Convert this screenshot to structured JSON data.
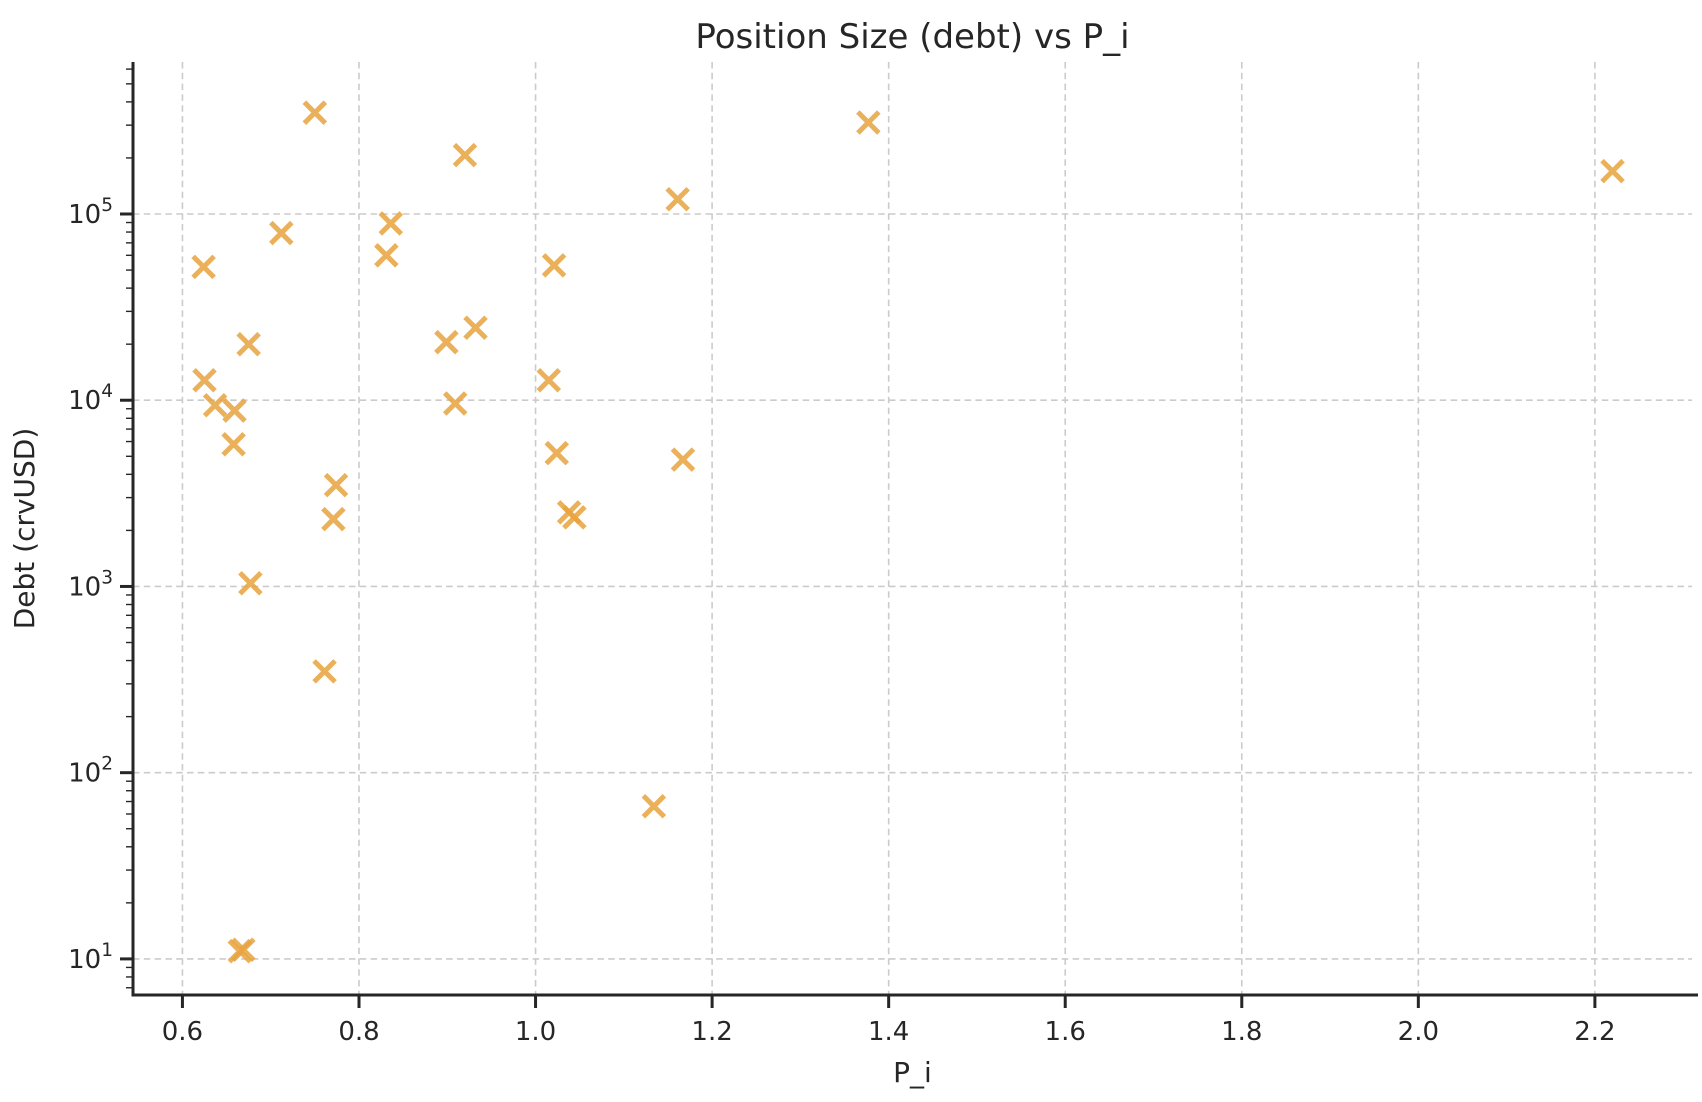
{
  "title": "Position Size (debt) vs P_i",
  "chart_data": {
    "type": "scatter",
    "title": "Position Size (debt) vs P_i",
    "xlabel": "P_i",
    "ylabel": "Debt (crvUSD)",
    "x_ticks": [
      0.6,
      0.8,
      1.0,
      1.2,
      1.4,
      1.6,
      1.8,
      2.0,
      2.2
    ],
    "x_tick_labels": [
      "0.6",
      "0.8",
      "1.0",
      "1.2",
      "1.4",
      "1.6",
      "1.8",
      "2.0",
      "2.2"
    ],
    "y_ticks": [
      10,
      100,
      1000,
      10000,
      100000
    ],
    "y_tick_exponents": [
      1,
      2,
      3,
      4,
      5
    ],
    "xlim": [
      0.544,
      2.31
    ],
    "ylim": [
      6.4,
      655000
    ],
    "y_scale": "log",
    "grid": true,
    "legend": "none",
    "marker": "x",
    "points": [
      [
        0.75,
        350000
      ],
      [
        0.92,
        207000
      ],
      [
        0.712,
        79000
      ],
      [
        0.624,
        52000
      ],
      [
        0.836,
        89000
      ],
      [
        0.831,
        60000
      ],
      [
        0.675,
        20000
      ],
      [
        0.625,
        12800
      ],
      [
        0.637,
        9400
      ],
      [
        0.659,
        8800
      ],
      [
        0.658,
        5800
      ],
      [
        0.899,
        20500
      ],
      [
        0.932,
        24500
      ],
      [
        0.909,
        9600
      ],
      [
        0.774,
        3500
      ],
      [
        0.771,
        2300
      ],
      [
        0.677,
        1040
      ],
      [
        0.761,
        350
      ],
      [
        1.161,
        120000
      ],
      [
        1.021,
        53000
      ],
      [
        1.015,
        12800
      ],
      [
        1.024,
        5200
      ],
      [
        1.167,
        4800
      ],
      [
        1.038,
        2500
      ],
      [
        1.044,
        2350
      ],
      [
        1.134,
        66
      ],
      [
        0.665,
        11
      ],
      [
        0.669,
        11.2
      ],
      [
        1.377,
        310000
      ],
      [
        2.22,
        170000
      ]
    ]
  },
  "colors": {
    "marker": "#e8a33d",
    "grid": "#cbcbcb",
    "axis": "#262626",
    "text": "#262626",
    "background": "#ffffff"
  }
}
